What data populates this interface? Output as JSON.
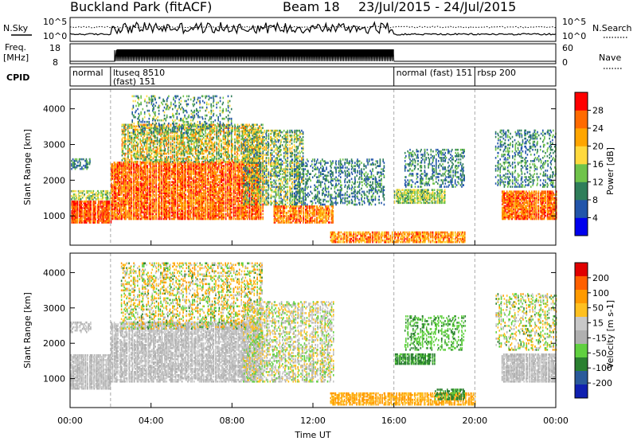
{
  "header": {
    "station": "Buckland Park (fitACF)",
    "beam": "Beam 18",
    "dates": "23/Jul/2015 - 24/Jul/2015"
  },
  "noise_panel": {
    "left_label": "N.Sky",
    "right_label": "N.Search",
    "y_top": "10^5",
    "y_bottom": "10^0",
    "r_top": "10^5",
    "r_bottom": "10^0"
  },
  "freq_panel": {
    "label_line1": "Freq.",
    "label_line2": "[MHz]",
    "y_top": "18",
    "y_bottom": "8",
    "r_top": "60",
    "r_bottom": "0",
    "right_label": "Nave"
  },
  "cpid_panel": {
    "label": "CPID",
    "segments": [
      {
        "hour": 0.0,
        "line1": "normal",
        "line2": ""
      },
      {
        "hour": 2.0,
        "line1": "ltuseq 8510",
        "line2": "(fast) 151"
      },
      {
        "hour": 16.0,
        "line1": "normal (fast) 151",
        "line2": ""
      },
      {
        "hour": 20.0,
        "line1": "rbsp 200",
        "line2": ""
      }
    ]
  },
  "power_panel": {
    "ylabel": "Slant Range [km]",
    "yticks": [
      "1000",
      "2000",
      "3000",
      "4000"
    ],
    "colorbar_label": "Power [dB]",
    "colorbar_ticks": [
      "4",
      "8",
      "12",
      "16",
      "20",
      "24",
      "28"
    ]
  },
  "velocity_panel": {
    "ylabel": "Slant Range [km]",
    "yticks": [
      "1000",
      "2000",
      "3000",
      "4000"
    ],
    "colorbar_label": "Velocity [m s-1]",
    "colorbar_ticks": [
      "200",
      "100",
      "50",
      "15",
      "-15",
      "-50",
      "-100",
      "-200"
    ]
  },
  "xaxis": {
    "label": "Time UT",
    "ticks": [
      "00:00",
      "04:00",
      "08:00",
      "12:00",
      "16:00",
      "20:00",
      "00:00"
    ]
  },
  "colors": {
    "power_scale": [
      "#0000ee",
      "#2255aa",
      "#2f7e5a",
      "#6fc34a",
      "#ffd93d",
      "#ffa500",
      "#ff6a00",
      "#ff0000"
    ],
    "velocity_scale": [
      "#e00000",
      "#ff6000",
      "#ff9a00",
      "#ffc020",
      "#c8c8c8",
      "#b0b0b0",
      "#60d040",
      "#2a8030",
      "#2a5a9a",
      "#1020b0"
    ]
  },
  "chart_data": [
    {
      "type": "heatmap",
      "title": "Power",
      "xlabel": "Time UT",
      "ylabel": "Slant Range [km]",
      "xlim_hours": [
        0,
        24
      ],
      "ylim_km": [
        180,
        4550
      ],
      "colorbar": {
        "label": "Power [dB]",
        "range": [
          0,
          32
        ],
        "ticks": [
          4,
          8,
          12,
          16,
          20,
          24,
          28
        ]
      },
      "regions": [
        {
          "t0": 0.0,
          "t1": 2.0,
          "r0": 800,
          "r1": 1450,
          "p0": 22,
          "p1": 31,
          "density": 0.95
        },
        {
          "t0": 0.0,
          "t1": 2.0,
          "r0": 1450,
          "r1": 1700,
          "p0": 10,
          "p1": 20,
          "density": 0.6
        },
        {
          "t0": 0.0,
          "t1": 1.0,
          "r0": 2300,
          "r1": 2600,
          "p0": 4,
          "p1": 14,
          "density": 0.5
        },
        {
          "t0": 2.0,
          "t1": 9.5,
          "r0": 900,
          "r1": 2500,
          "p0": 20,
          "p1": 31,
          "density": 0.85
        },
        {
          "t0": 2.5,
          "t1": 9.5,
          "r0": 2500,
          "r1": 3600,
          "p0": 8,
          "p1": 26,
          "density": 0.6
        },
        {
          "t0": 3.0,
          "t1": 8.0,
          "r0": 3300,
          "r1": 4400,
          "p0": 4,
          "p1": 18,
          "density": 0.25
        },
        {
          "t0": 8.5,
          "t1": 11.5,
          "r0": 1300,
          "r1": 3400,
          "p0": 6,
          "p1": 22,
          "density": 0.5
        },
        {
          "t0": 10.0,
          "t1": 13.0,
          "r0": 800,
          "r1": 1300,
          "p0": 18,
          "p1": 30,
          "density": 0.8
        },
        {
          "t0": 11.0,
          "t1": 15.5,
          "r0": 1300,
          "r1": 2600,
          "p0": 4,
          "p1": 14,
          "density": 0.35
        },
        {
          "t0": 12.8,
          "t1": 19.5,
          "r0": 250,
          "r1": 550,
          "p0": 16,
          "p1": 30,
          "density": 0.8
        },
        {
          "t0": 16.0,
          "t1": 18.5,
          "r0": 1350,
          "r1": 1750,
          "p0": 10,
          "p1": 20,
          "density": 0.8
        },
        {
          "t0": 16.5,
          "t1": 19.5,
          "r0": 1800,
          "r1": 2900,
          "p0": 4,
          "p1": 14,
          "density": 0.35
        },
        {
          "t0": 21.3,
          "t1": 24.0,
          "r0": 900,
          "r1": 1700,
          "p0": 20,
          "p1": 31,
          "density": 0.85
        },
        {
          "t0": 21.0,
          "t1": 24.0,
          "r0": 1800,
          "r1": 3400,
          "p0": 4,
          "p1": 16,
          "density": 0.3
        }
      ]
    },
    {
      "type": "heatmap",
      "title": "Velocity",
      "xlabel": "Time UT",
      "ylabel": "Slant Range [km]",
      "xlim_hours": [
        0,
        24
      ],
      "ylim_km": [
        180,
        4550
      ],
      "colorbar": {
        "label": "Velocity [m s-1]",
        "range": [
          -250,
          250
        ],
        "ticks": [
          200,
          100,
          50,
          15,
          -15,
          -50,
          -100,
          -200
        ]
      },
      "regions": [
        {
          "t0": 0.0,
          "t1": 2.0,
          "r0": 700,
          "r1": 1700,
          "v0": -15,
          "v1": 15,
          "density": 0.9
        },
        {
          "t0": 0.0,
          "t1": 1.0,
          "r0": 2300,
          "r1": 2600,
          "v0": -15,
          "v1": 15,
          "density": 0.5
        },
        {
          "t0": 2.0,
          "t1": 9.5,
          "r0": 900,
          "r1": 2600,
          "v0": -15,
          "v1": 15,
          "density": 0.75
        },
        {
          "t0": 2.5,
          "t1": 9.5,
          "r0": 2400,
          "r1": 4300,
          "v0": -80,
          "v1": 60,
          "density": 0.35
        },
        {
          "t0": 8.5,
          "t1": 13.0,
          "r0": 900,
          "r1": 3200,
          "v0": -30,
          "v1": 30,
          "density": 0.45
        },
        {
          "t0": 12.8,
          "t1": 20.0,
          "r0": 250,
          "r1": 600,
          "v0": -100,
          "v1": -20,
          "density": 0.7
        },
        {
          "t0": 16.0,
          "t1": 18.0,
          "r0": 1400,
          "r1": 1700,
          "v0": 40,
          "v1": 90,
          "density": 0.85
        },
        {
          "t0": 16.5,
          "t1": 19.5,
          "r0": 1800,
          "r1": 2800,
          "v0": 20,
          "v1": 70,
          "density": 0.35
        },
        {
          "t0": 18.0,
          "t1": 19.5,
          "r0": 400,
          "r1": 700,
          "v0": 40,
          "v1": 90,
          "density": 0.6
        },
        {
          "t0": 21.3,
          "t1": 24.0,
          "r0": 900,
          "r1": 1700,
          "v0": -15,
          "v1": 15,
          "density": 0.85
        },
        {
          "t0": 21.0,
          "t1": 24.0,
          "r0": 1800,
          "r1": 3400,
          "v0": -60,
          "v1": 60,
          "density": 0.3
        }
      ]
    }
  ]
}
